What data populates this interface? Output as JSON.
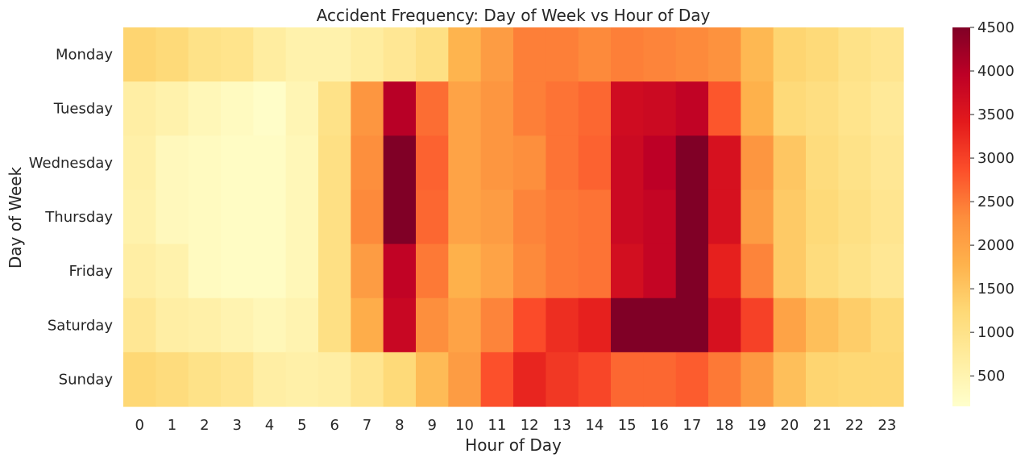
{
  "chart_data": {
    "type": "heatmap",
    "title": "Accident Frequency: Day of Week vs Hour of Day",
    "xlabel": "Hour of Day",
    "ylabel": "Day of Week",
    "x_categories": [
      "0",
      "1",
      "2",
      "3",
      "4",
      "5",
      "6",
      "7",
      "8",
      "9",
      "10",
      "11",
      "12",
      "13",
      "14",
      "15",
      "16",
      "17",
      "18",
      "19",
      "20",
      "21",
      "22",
      "23"
    ],
    "y_categories": [
      "Monday",
      "Tuesday",
      "Wednesday",
      "Thursday",
      "Friday",
      "Saturday",
      "Sunday"
    ],
    "values": [
      [
        1300,
        1200,
        1000,
        950,
        700,
        550,
        550,
        700,
        850,
        1050,
        1750,
        2100,
        2450,
        2450,
        2350,
        2450,
        2400,
        2350,
        2250,
        1700,
        1300,
        1200,
        1000,
        900
      ],
      [
        650,
        550,
        400,
        300,
        200,
        450,
        1000,
        2200,
        4000,
        2600,
        2000,
        2200,
        2450,
        2550,
        2650,
        3700,
        3750,
        3900,
        2800,
        1800,
        1200,
        1100,
        950,
        800
      ],
      [
        600,
        350,
        300,
        250,
        250,
        400,
        1050,
        2300,
        4500,
        2700,
        2000,
        2200,
        2300,
        2550,
        2700,
        3750,
        3950,
        4500,
        3600,
        2200,
        1500,
        1150,
        1000,
        850
      ],
      [
        550,
        350,
        300,
        250,
        250,
        400,
        1050,
        2350,
        4500,
        2650,
        2000,
        2100,
        2400,
        2500,
        2550,
        3750,
        3850,
        4500,
        3600,
        2100,
        1450,
        1200,
        1050,
        900
      ],
      [
        650,
        550,
        300,
        250,
        250,
        400,
        1050,
        2100,
        3900,
        2500,
        1800,
        2000,
        2350,
        2500,
        2550,
        3650,
        3850,
        4500,
        3350,
        2400,
        1450,
        1150,
        1000,
        850
      ],
      [
        850,
        650,
        600,
        500,
        400,
        500,
        1050,
        1850,
        3800,
        2300,
        2000,
        2400,
        2900,
        3200,
        3350,
        4500,
        4500,
        4500,
        3600,
        3000,
        2000,
        1600,
        1400,
        1200
      ],
      [
        1250,
        1150,
        1000,
        900,
        650,
        600,
        650,
        900,
        1200,
        1650,
        2100,
        2850,
        3300,
        3100,
        2950,
        2650,
        2650,
        2750,
        2500,
        2150,
        1600,
        1300,
        1250,
        1250
      ]
    ],
    "colormap": "YlOrRd",
    "vmin": 150,
    "vmax": 4500,
    "colorbar_ticks": [
      500,
      1000,
      1500,
      2000,
      2500,
      3000,
      3500,
      4000,
      4500
    ],
    "colorbar_stops": [
      "#ffffcc",
      "#ffeda0",
      "#fed976",
      "#feb24c",
      "#fd8d3c",
      "#fc4e2a",
      "#e31a1c",
      "#bd0026",
      "#800026"
    ],
    "grid": false
  }
}
